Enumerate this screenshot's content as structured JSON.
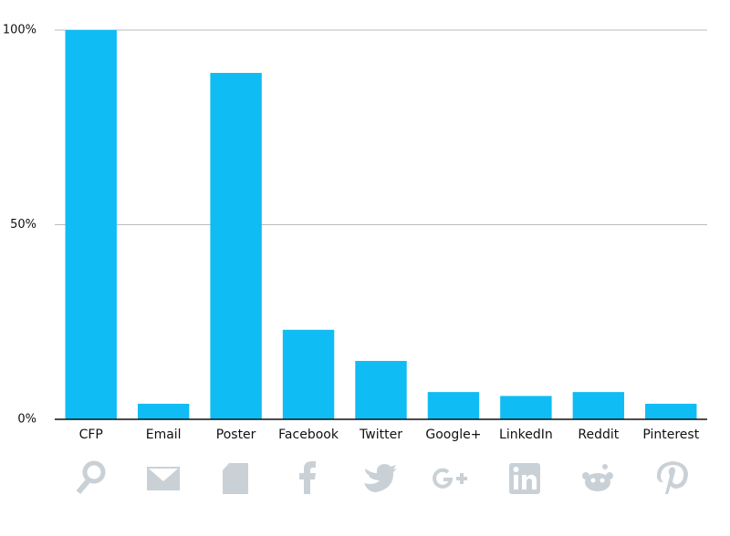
{
  "chart_data": {
    "type": "bar",
    "categories": [
      "CFP",
      "Email",
      "Poster",
      "Facebook",
      "Twitter",
      "Google+",
      "LinkedIn",
      "Reddit",
      "Pinterest"
    ],
    "values": [
      100,
      4,
      89,
      23,
      15,
      7,
      6,
      7,
      4
    ],
    "color": "#0fbcf3",
    "ylim": [
      0,
      100
    ],
    "yticks": [
      {
        "value": 0,
        "label": "0%"
      },
      {
        "value": 50,
        "label": "50%"
      },
      {
        "value": 100,
        "label": "100%"
      }
    ],
    "grid": true
  }
}
